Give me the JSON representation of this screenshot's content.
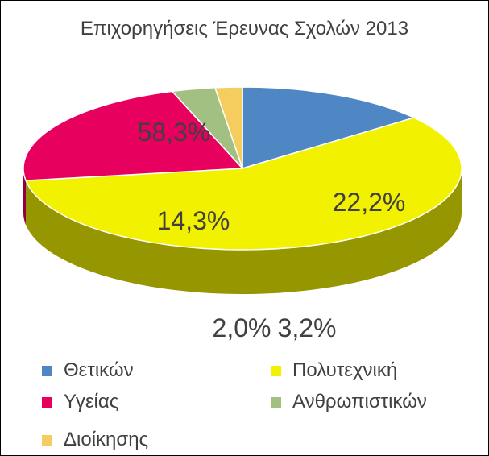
{
  "chart_data": {
    "type": "pie",
    "title": "Επιχορηγήσεις Έρευνας Σχολών 2013",
    "categories": [
      "Θετικών",
      "Πολυτεχνική",
      "Υγείας",
      "Ανθρωπιστικών",
      "Διοίκησης"
    ],
    "values": [
      14.3,
      58.3,
      22.2,
      3.2,
      2.0
    ],
    "value_labels": [
      "14,3%",
      "58,3%",
      "22,2%",
      "3,2%",
      "2,0%"
    ],
    "colors": [
      "#4f87c4",
      "#f2f200",
      "#e8005e",
      "#a3c083",
      "#f5cc5e"
    ],
    "legend_position": "bottom",
    "style": "3d"
  }
}
